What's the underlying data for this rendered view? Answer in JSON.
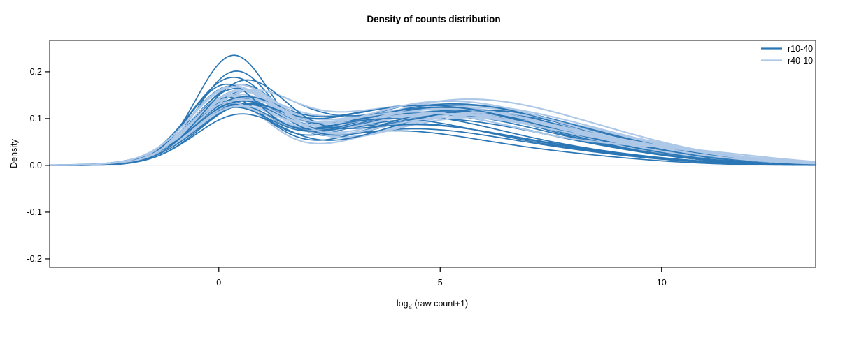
{
  "page": {
    "background": "#ffffff"
  },
  "chart_data": {
    "type": "line",
    "title": "Density of counts distribution",
    "xlabel": "log2 (raw count+1)",
    "xlabel_parts": {
      "prefix": "log",
      "sub": "2",
      "suffix": " (raw count+1)"
    },
    "ylabel": "Density",
    "xlim": [
      -3.82,
      13.48
    ],
    "ylim": [
      -0.218,
      0.267
    ],
    "x_ticks": [
      0,
      5,
      10
    ],
    "x_tick_labels": [
      "0",
      "5",
      "10"
    ],
    "y_ticks": [
      -0.2,
      -0.1,
      0.0,
      0.1,
      0.2
    ],
    "y_tick_labels": [
      "-0.2",
      "-0.1",
      "0.0",
      "0.1",
      "0.2"
    ],
    "grid": false,
    "baseline_y": 0.0,
    "baseline_color": "#e4e4e4",
    "box_color": "#555555",
    "tick_color": "#000000",
    "legend": {
      "position": "top-right",
      "entries": [
        {
          "label": "r10-40",
          "color": "#2b76b4"
        },
        {
          "label": "r40-10",
          "color": "#aec8e8"
        }
      ]
    },
    "curve_model": "sum-of-gaussians [a1,m1,s1,a2,m2,s2,a3,m3,s3]; density(x)=sum ai*exp(-(x-mi)^2/(2*si^2))",
    "series": [
      {
        "name": "r10-40",
        "color": "#2b76b4",
        "line_width": 1.7,
        "curves": [
          [
            0.22,
            0.3,
            0.82,
            0.07,
            3.8,
            2.0,
            0.02,
            7.5,
            2.0
          ],
          [
            0.185,
            0.35,
            0.85,
            0.075,
            4.2,
            2.2,
            0.018,
            8.0,
            2.0
          ],
          [
            0.165,
            0.25,
            0.9,
            0.085,
            4.0,
            2.3,
            0.02,
            7.8,
            2.2
          ],
          [
            0.15,
            0.4,
            0.95,
            0.095,
            4.5,
            2.4,
            0.022,
            8.2,
            2.1
          ],
          [
            0.145,
            0.2,
            0.88,
            0.1,
            3.9,
            2.2,
            0.025,
            7.6,
            2.3
          ],
          [
            0.14,
            0.5,
            1.0,
            0.105,
            4.8,
            2.3,
            0.02,
            8.5,
            2.0
          ],
          [
            0.135,
            0.3,
            0.92,
            0.11,
            4.4,
            2.5,
            0.018,
            8.8,
            1.9
          ],
          [
            0.13,
            0.15,
            0.85,
            0.115,
            5.0,
            2.4,
            0.015,
            9.0,
            1.8
          ],
          [
            0.128,
            0.45,
            1.05,
            0.108,
            5.3,
            2.2,
            0.02,
            8.6,
            2.0
          ],
          [
            0.125,
            0.6,
            1.1,
            0.112,
            4.6,
            2.6,
            0.022,
            8.0,
            2.2
          ],
          [
            0.122,
            0.25,
            0.9,
            0.118,
            5.5,
            2.3,
            0.016,
            9.2,
            1.8
          ],
          [
            0.12,
            0.35,
            0.95,
            0.12,
            4.9,
            2.5,
            0.018,
            8.4,
            2.0
          ],
          [
            0.118,
            0.55,
            1.0,
            0.11,
            5.6,
            2.4,
            0.02,
            9.0,
            2.0
          ],
          [
            0.115,
            0.2,
            0.88,
            0.135,
            5.1,
            2.5,
            0.015,
            8.8,
            1.9
          ],
          [
            0.112,
            0.4,
            0.98,
            0.122,
            4.3,
            2.4,
            0.024,
            7.9,
            2.2
          ],
          [
            0.11,
            0.3,
            0.92,
            0.128,
            5.4,
            2.6,
            0.014,
            9.4,
            1.7
          ],
          [
            0.108,
            0.5,
            1.02,
            0.118,
            4.7,
            2.3,
            0.022,
            8.2,
            2.1
          ],
          [
            0.105,
            0.25,
            0.9,
            0.13,
            5.2,
            2.5,
            0.016,
            9.1,
            1.8
          ],
          [
            0.102,
            0.45,
            1.0,
            0.115,
            5.8,
            2.3,
            0.02,
            9.5,
            1.9
          ],
          [
            0.1,
            0.35,
            0.95,
            0.126,
            4.5,
            2.6,
            0.018,
            8.6,
            2.0
          ],
          [
            0.15,
            0.1,
            0.8,
            0.09,
            3.6,
            2.1,
            0.028,
            7.2,
            2.4
          ],
          [
            0.16,
            0.55,
            0.95,
            0.08,
            4.1,
            2.2,
            0.024,
            7.7,
            2.2
          ]
        ]
      },
      {
        "name": "r40-10",
        "color": "#aec8e8",
        "line_width": 2.2,
        "curves": [
          [
            0.1,
            0.4,
            1.0,
            0.115,
            4.6,
            2.5,
            0.03,
            8.5,
            2.3
          ],
          [
            0.105,
            0.3,
            0.95,
            0.12,
            4.9,
            2.4,
            0.026,
            8.8,
            2.1
          ],
          [
            0.11,
            0.5,
            1.05,
            0.118,
            5.2,
            2.5,
            0.028,
            9.0,
            2.2
          ],
          [
            0.115,
            0.25,
            0.92,
            0.112,
            4.4,
            2.6,
            0.032,
            8.2,
            2.4
          ],
          [
            0.12,
            0.45,
            1.0,
            0.108,
            5.5,
            2.4,
            0.024,
            9.4,
            2.0
          ],
          [
            0.125,
            0.35,
            0.98,
            0.115,
            4.7,
            2.5,
            0.028,
            8.6,
            2.2
          ],
          [
            0.13,
            0.2,
            0.9,
            0.11,
            5.0,
            2.6,
            0.026,
            9.2,
            2.1
          ],
          [
            0.135,
            0.55,
            1.05,
            0.105,
            5.7,
            2.3,
            0.022,
            9.6,
            1.9
          ],
          [
            0.14,
            0.3,
            0.95,
            0.112,
            4.3,
            2.5,
            0.03,
            8.0,
            2.3
          ],
          [
            0.145,
            0.4,
            1.0,
            0.108,
            5.3,
            2.4,
            0.026,
            9.0,
            2.1
          ],
          [
            0.15,
            0.25,
            0.92,
            0.102,
            4.8,
            2.5,
            0.028,
            8.4,
            2.2
          ],
          [
            0.155,
            0.5,
            1.02,
            0.098,
            5.6,
            2.3,
            0.024,
            9.3,
            2.0
          ],
          [
            0.118,
            0.35,
            0.96,
            0.12,
            5.1,
            2.6,
            0.03,
            8.7,
            2.3
          ],
          [
            0.112,
            0.45,
            1.02,
            0.124,
            4.5,
            2.5,
            0.026,
            8.3,
            2.2
          ],
          [
            0.108,
            0.3,
            0.94,
            0.135,
            5.4,
            2.5,
            0.028,
            9.1,
            2.1
          ],
          [
            0.122,
            0.55,
            1.06,
            0.116,
            4.2,
            2.4,
            0.032,
            7.8,
            2.4
          ],
          [
            0.128,
            0.2,
            0.9,
            0.11,
            5.8,
            2.4,
            0.024,
            9.8,
            2.0
          ],
          [
            0.132,
            0.4,
            0.98,
            0.106,
            4.6,
            2.6,
            0.03,
            8.9,
            2.2
          ],
          [
            0.116,
            0.5,
            1.04,
            0.118,
            5.0,
            2.5,
            0.026,
            9.5,
            2.1
          ],
          [
            0.104,
            0.35,
            0.96,
            0.122,
            4.8,
            2.4,
            0.034,
            8.1,
            2.5
          ],
          [
            0.148,
            0.45,
            1.0,
            0.1,
            5.2,
            2.3,
            0.028,
            9.7,
            2.2
          ],
          [
            0.138,
            0.25,
            0.93,
            0.114,
            4.4,
            2.5,
            0.03,
            10.2,
            2.0
          ]
        ]
      }
    ]
  }
}
